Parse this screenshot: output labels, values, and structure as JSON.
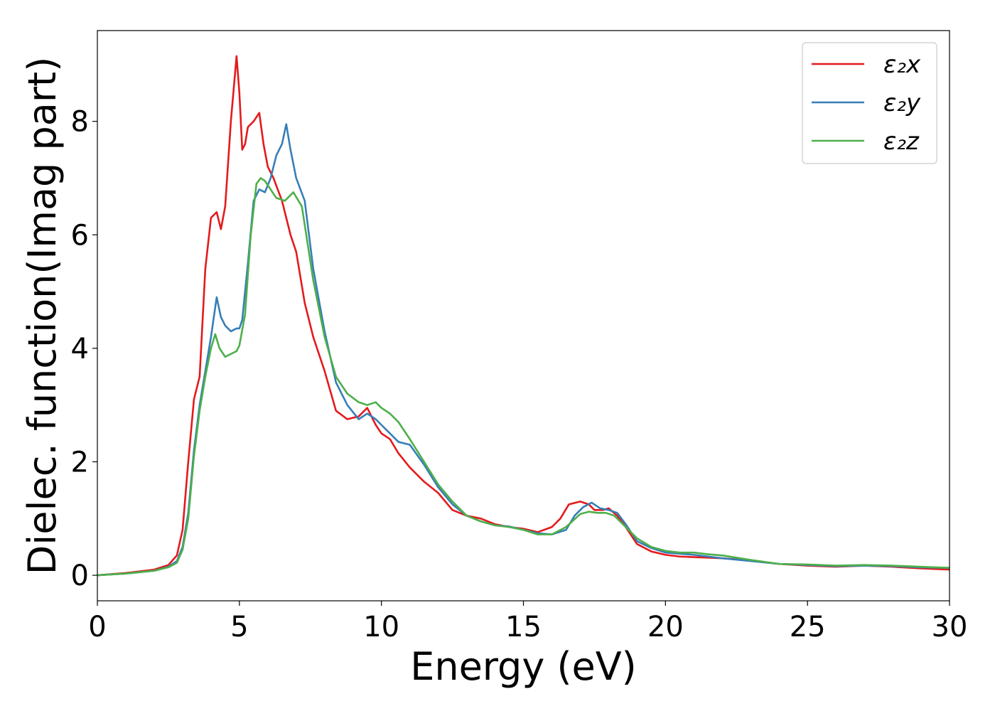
{
  "chart_data": {
    "type": "line",
    "xlabel": "Energy (eV)",
    "ylabel": "Dielec. function(Imag part)",
    "xlim": [
      0,
      30
    ],
    "ylim": [
      -0.45,
      9.6
    ],
    "xticks": [
      0,
      5,
      10,
      15,
      20,
      25,
      30
    ],
    "yticks": [
      0,
      2,
      4,
      6,
      8
    ],
    "grid": false,
    "legend_position": "top-right",
    "series": [
      {
        "name": "ε₂x",
        "color": "#e41a1c",
        "x": [
          0,
          1,
          2,
          2.5,
          2.8,
          3.0,
          3.2,
          3.4,
          3.6,
          3.8,
          4.0,
          4.2,
          4.35,
          4.5,
          4.7,
          4.9,
          5.0,
          5.1,
          5.2,
          5.3,
          5.5,
          5.7,
          5.85,
          6.0,
          6.2,
          6.5,
          6.8,
          7.0,
          7.3,
          7.6,
          8.0,
          8.4,
          8.8,
          9.2,
          9.5,
          9.8,
          10.0,
          10.3,
          10.6,
          11.0,
          11.5,
          12.0,
          12.5,
          13.0,
          13.5,
          14.0,
          14.5,
          15.0,
          15.5,
          16.0,
          16.3,
          16.6,
          17.0,
          17.3,
          17.5,
          17.8,
          18.0,
          18.3,
          18.6,
          19.0,
          19.5,
          20.0,
          20.5,
          21.0,
          21.5,
          22.0,
          23.0,
          24.0,
          25.0,
          26.0,
          27.0,
          28.0,
          29.0,
          30.0
        ],
        "values": [
          0.0,
          0.04,
          0.1,
          0.18,
          0.35,
          0.8,
          2.0,
          3.1,
          3.5,
          5.4,
          6.3,
          6.4,
          6.1,
          6.5,
          8.0,
          9.15,
          8.5,
          7.5,
          7.6,
          7.9,
          8.0,
          8.15,
          7.6,
          7.2,
          7.0,
          6.6,
          6.0,
          5.7,
          4.8,
          4.2,
          3.6,
          2.9,
          2.75,
          2.8,
          2.95,
          2.65,
          2.5,
          2.4,
          2.15,
          1.9,
          1.65,
          1.45,
          1.15,
          1.05,
          1.0,
          0.9,
          0.85,
          0.82,
          0.76,
          0.85,
          1.0,
          1.25,
          1.3,
          1.25,
          1.15,
          1.15,
          1.18,
          1.05,
          0.85,
          0.55,
          0.42,
          0.36,
          0.33,
          0.32,
          0.31,
          0.3,
          0.26,
          0.2,
          0.17,
          0.15,
          0.17,
          0.15,
          0.12,
          0.1
        ]
      },
      {
        "name": "ε₂y",
        "color": "#377eb8",
        "x": [
          0,
          1,
          2,
          2.5,
          2.8,
          3.0,
          3.2,
          3.4,
          3.6,
          3.8,
          4.0,
          4.2,
          4.35,
          4.5,
          4.7,
          4.9,
          5.0,
          5.1,
          5.3,
          5.5,
          5.7,
          5.9,
          6.1,
          6.3,
          6.5,
          6.65,
          6.8,
          7.0,
          7.3,
          7.6,
          8.0,
          8.4,
          8.8,
          9.2,
          9.5,
          9.8,
          10.0,
          10.3,
          10.6,
          11.0,
          11.5,
          12.0,
          12.5,
          13.0,
          13.5,
          14.0,
          14.5,
          15.0,
          15.5,
          16.0,
          16.5,
          16.8,
          17.1,
          17.4,
          17.7,
          18.0,
          18.3,
          18.6,
          19.0,
          19.5,
          20.0,
          20.5,
          21.0,
          21.5,
          22.0,
          23.0,
          24.0,
          25.0,
          26.0,
          27.0,
          28.0,
          29.0,
          30.0
        ],
        "values": [
          0.0,
          0.03,
          0.08,
          0.15,
          0.25,
          0.5,
          1.1,
          2.2,
          3.0,
          3.6,
          4.2,
          4.9,
          4.55,
          4.4,
          4.3,
          4.35,
          4.35,
          4.5,
          5.5,
          6.6,
          6.8,
          6.75,
          7.0,
          7.4,
          7.6,
          7.95,
          7.5,
          7.0,
          6.6,
          5.4,
          4.3,
          3.4,
          3.0,
          2.75,
          2.85,
          2.75,
          2.65,
          2.5,
          2.35,
          2.3,
          1.95,
          1.55,
          1.25,
          1.05,
          0.95,
          0.88,
          0.86,
          0.8,
          0.74,
          0.72,
          0.8,
          1.05,
          1.2,
          1.28,
          1.18,
          1.15,
          1.1,
          0.9,
          0.6,
          0.48,
          0.4,
          0.38,
          0.36,
          0.33,
          0.3,
          0.25,
          0.2,
          0.18,
          0.16,
          0.17,
          0.16,
          0.14,
          0.13
        ]
      },
      {
        "name": "ε₂z",
        "color": "#4daf4a",
        "x": [
          0,
          1,
          2,
          2.5,
          2.8,
          3.0,
          3.2,
          3.4,
          3.6,
          3.8,
          4.0,
          4.15,
          4.3,
          4.5,
          4.7,
          4.9,
          5.0,
          5.2,
          5.4,
          5.6,
          5.75,
          5.9,
          6.1,
          6.3,
          6.6,
          6.9,
          7.2,
          7.6,
          8.0,
          8.4,
          8.8,
          9.2,
          9.5,
          9.8,
          10.0,
          10.3,
          10.6,
          11.0,
          11.5,
          12.0,
          12.5,
          13.0,
          13.5,
          14.0,
          14.5,
          15.0,
          15.5,
          16.0,
          16.5,
          17.0,
          17.3,
          17.6,
          17.9,
          18.2,
          18.6,
          19.0,
          19.5,
          20.0,
          20.5,
          21.0,
          21.5,
          22.0,
          23.0,
          24.0,
          25.0,
          26.0,
          27.0,
          28.0,
          29.0,
          30.0
        ],
        "values": [
          0.0,
          0.03,
          0.08,
          0.14,
          0.22,
          0.45,
          1.0,
          2.1,
          2.9,
          3.5,
          4.0,
          4.25,
          4.0,
          3.85,
          3.9,
          3.95,
          4.05,
          4.6,
          6.0,
          6.9,
          7.0,
          6.95,
          6.8,
          6.65,
          6.6,
          6.75,
          6.5,
          5.2,
          4.2,
          3.5,
          3.2,
          3.05,
          3.0,
          3.05,
          2.95,
          2.85,
          2.7,
          2.4,
          2.0,
          1.6,
          1.3,
          1.05,
          0.95,
          0.88,
          0.85,
          0.8,
          0.72,
          0.72,
          0.85,
          1.08,
          1.12,
          1.1,
          1.1,
          1.05,
          0.85,
          0.65,
          0.5,
          0.43,
          0.4,
          0.4,
          0.37,
          0.35,
          0.27,
          0.2,
          0.19,
          0.17,
          0.18,
          0.17,
          0.15,
          0.13
        ]
      }
    ]
  }
}
